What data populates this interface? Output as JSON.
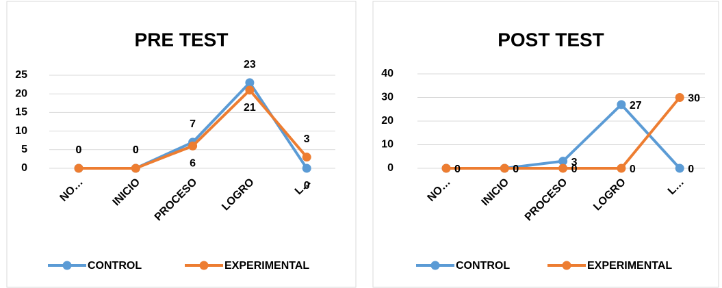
{
  "chart_data": [
    {
      "type": "line",
      "title": "PRE TEST",
      "categories": [
        "NO…",
        "INICIO",
        "PROCESO",
        "LOGRO",
        "L…"
      ],
      "series": [
        {
          "name": "CONTROL",
          "color": "#5b9bd5",
          "values": [
            0,
            0,
            7,
            23,
            0
          ]
        },
        {
          "name": "EXPERIMENTAL",
          "color": "#ed7d31",
          "values": [
            0,
            0,
            6,
            21,
            3
          ]
        }
      ],
      "ylim": [
        0,
        25
      ],
      "yticks": [
        0,
        5,
        10,
        15,
        20,
        25
      ],
      "grid": true,
      "legend": "bottom"
    },
    {
      "type": "line",
      "title": "POST TEST",
      "categories": [
        "NO…",
        "INICIO",
        "PROCESO",
        "LOGRO",
        "L…"
      ],
      "series": [
        {
          "name": "CONTROL",
          "color": "#5b9bd5",
          "values": [
            0,
            0,
            3,
            27,
            0
          ]
        },
        {
          "name": "EXPERIMENTAL",
          "color": "#ed7d31",
          "values": [
            0,
            0,
            0,
            0,
            30
          ]
        }
      ],
      "ylim": [
        0,
        40
      ],
      "yticks": [
        0,
        10,
        20,
        30,
        40
      ],
      "grid": true,
      "legend": "bottom"
    }
  ]
}
